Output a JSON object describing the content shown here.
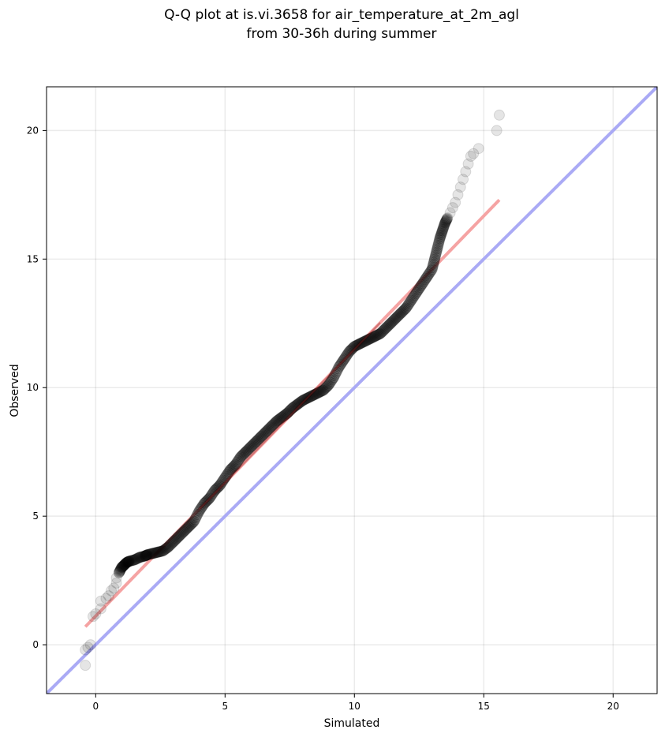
{
  "chart_data": {
    "type": "scatter",
    "title_lines": [
      "Q-Q plot at is.vi.3658 for air_temperature_at_2m_agl",
      "from 30-36h during summer"
    ],
    "xlabel": "Simulated",
    "ylabel": "Observed",
    "xlim": [
      -1.9,
      21.7
    ],
    "ylim": [
      -1.9,
      21.7
    ],
    "xticks": [
      0,
      5,
      10,
      15,
      20
    ],
    "yticks": [
      0,
      5,
      10,
      15,
      20
    ],
    "grid": true,
    "colors": {
      "points": "#000000",
      "identity_line": "#aaaaf5",
      "fit_line": "#f5a3a3",
      "fit_core": "#8b1a1a"
    },
    "identity_line": {
      "from": [
        -1.9,
        -1.9
      ],
      "to": [
        21.7,
        21.7
      ]
    },
    "fit_line": {
      "from": [
        -0.4,
        0.7
      ],
      "to": [
        15.6,
        17.3
      ]
    },
    "series": [
      {
        "x": [
          -0.4,
          -0.4,
          -0.3,
          -0.2,
          -0.1,
          0.0,
          0.2,
          0.2,
          0.4,
          0.5,
          0.6,
          0.7,
          0.8,
          0.8,
          0.9,
          1.0,
          1.1,
          1.2,
          1.3,
          1.5,
          1.7,
          1.9,
          2.0,
          2.2,
          2.4,
          2.6,
          2.8,
          3.0,
          3.2,
          3.4,
          3.6,
          3.8,
          4.0,
          4.2,
          4.4,
          4.6,
          4.8,
          5.0,
          5.2,
          5.4,
          5.6,
          5.8,
          6.0,
          6.2,
          6.4,
          6.6,
          6.8,
          7.0,
          7.2,
          7.4,
          7.6,
          7.8,
          8.0,
          8.2,
          8.4,
          8.6,
          8.8,
          9.0,
          9.2,
          9.4,
          9.6,
          9.8,
          10.0,
          10.2,
          10.4,
          10.6,
          10.8,
          11.0,
          11.2,
          11.4,
          11.6,
          11.8,
          12.0,
          12.2,
          12.4,
          12.6,
          12.8,
          13.0,
          13.1,
          13.2,
          13.3,
          13.4,
          13.5,
          13.6,
          13.7,
          13.8,
          13.9,
          14.0,
          14.1,
          14.2,
          14.3,
          14.4,
          14.5,
          14.6,
          14.8,
          15.5,
          15.6
        ],
        "y": [
          -0.8,
          -0.2,
          -0.1,
          0.0,
          1.1,
          1.2,
          1.4,
          1.7,
          1.8,
          1.9,
          2.1,
          2.2,
          2.4,
          2.6,
          2.8,
          3.0,
          3.1,
          3.2,
          3.25,
          3.3,
          3.4,
          3.45,
          3.5,
          3.55,
          3.6,
          3.65,
          3.8,
          4.0,
          4.2,
          4.4,
          4.6,
          4.8,
          5.2,
          5.5,
          5.7,
          6.0,
          6.2,
          6.5,
          6.8,
          7.0,
          7.3,
          7.5,
          7.7,
          7.9,
          8.1,
          8.3,
          8.5,
          8.7,
          8.85,
          9.0,
          9.2,
          9.35,
          9.5,
          9.6,
          9.7,
          9.8,
          9.9,
          10.1,
          10.4,
          10.8,
          11.1,
          11.4,
          11.6,
          11.7,
          11.8,
          11.9,
          12.0,
          12.1,
          12.3,
          12.5,
          12.7,
          12.9,
          13.1,
          13.4,
          13.7,
          14.0,
          14.3,
          14.6,
          15.0,
          15.4,
          15.8,
          16.1,
          16.4,
          16.6,
          16.8,
          17.0,
          17.2,
          17.5,
          17.8,
          18.1,
          18.4,
          18.7,
          19.0,
          19.1,
          19.3,
          20.0,
          20.6
        ]
      }
    ]
  }
}
